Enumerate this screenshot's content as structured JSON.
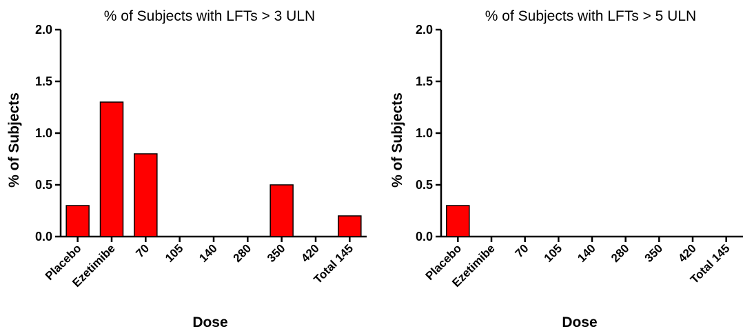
{
  "colors": {
    "bar_fill": "#ff0000",
    "bar_stroke": "#000000",
    "axis": "#000000"
  },
  "chart_data": [
    {
      "type": "bar",
      "title": "% of Subjects with LFTs > 3 ULN",
      "xlabel": "Dose",
      "ylabel": "% of Subjects",
      "ylim": [
        0,
        2.0
      ],
      "yticks": [
        "0.0",
        "0.5",
        "1.0",
        "1.5",
        "2.0"
      ],
      "categories": [
        "Placebo",
        "Ezetimibe",
        "70",
        "105",
        "140",
        "280",
        "350",
        "420",
        "Total 145"
      ],
      "values": [
        0.3,
        1.3,
        0.8,
        0,
        0,
        0,
        0.5,
        0,
        0.2
      ],
      "grid": false
    },
    {
      "type": "bar",
      "title": "% of Subjects with LFTs > 5 ULN",
      "xlabel": "Dose",
      "ylabel": "% of Subjects",
      "ylim": [
        0,
        2.0
      ],
      "yticks": [
        "0.0",
        "0.5",
        "1.0",
        "1.5",
        "2.0"
      ],
      "categories": [
        "Placebo",
        "Ezetimibe",
        "70",
        "105",
        "140",
        "280",
        "350",
        "420",
        "Total 145"
      ],
      "values": [
        0.3,
        0,
        0,
        0,
        0,
        0,
        0,
        0,
        0
      ],
      "grid": false
    }
  ]
}
